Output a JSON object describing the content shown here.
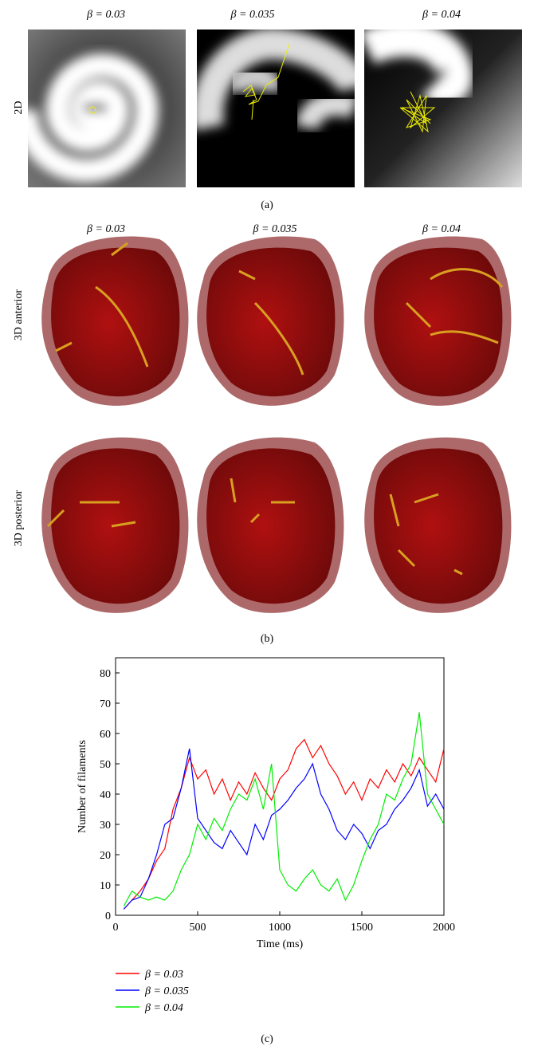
{
  "panel_a": {
    "columns": [
      "β = 0.03",
      "β = 0.035",
      "β = 0.04"
    ],
    "row_label": "2D",
    "caption": "(a)"
  },
  "panel_b": {
    "columns": [
      "β = 0.03",
      "β = 0.035",
      "β = 0.04"
    ],
    "rows": [
      "3D anterior",
      "3D posterior"
    ],
    "caption": "(b)"
  },
  "chart_data": {
    "type": "line",
    "xlabel": "Time (ms)",
    "ylabel": "Number of filaments",
    "x": [
      50,
      100,
      150,
      200,
      250,
      300,
      350,
      400,
      450,
      500,
      550,
      600,
      650,
      700,
      750,
      800,
      850,
      900,
      950,
      1000,
      1050,
      1100,
      1150,
      1200,
      1250,
      1300,
      1350,
      1400,
      1450,
      1500,
      1550,
      1600,
      1650,
      1700,
      1750,
      1800,
      1850,
      1900,
      1950,
      2000
    ],
    "series": [
      {
        "name": "β = 0.03",
        "color": "#ff0000",
        "values": [
          2,
          5,
          8,
          12,
          18,
          22,
          35,
          42,
          52,
          45,
          48,
          40,
          45,
          38,
          44,
          40,
          47,
          42,
          38,
          45,
          48,
          55,
          58,
          52,
          56,
          50,
          46,
          40,
          44,
          38,
          45,
          42,
          48,
          44,
          50,
          46,
          52,
          48,
          44,
          55
        ]
      },
      {
        "name": "β = 0.035",
        "color": "#0000ff",
        "values": [
          2,
          5,
          6,
          12,
          20,
          30,
          32,
          42,
          55,
          32,
          28,
          24,
          22,
          28,
          24,
          20,
          30,
          25,
          33,
          35,
          38,
          42,
          45,
          50,
          40,
          35,
          28,
          25,
          30,
          27,
          22,
          28,
          30,
          35,
          38,
          42,
          48,
          36,
          40,
          35
        ]
      },
      {
        "name": "β = 0.04",
        "color": "#00ee00",
        "values": [
          3,
          8,
          6,
          5,
          6,
          5,
          8,
          15,
          20,
          30,
          25,
          32,
          28,
          35,
          40,
          38,
          45,
          35,
          50,
          15,
          10,
          8,
          12,
          15,
          10,
          8,
          12,
          5,
          10,
          18,
          25,
          30,
          40,
          38,
          45,
          50,
          67,
          40,
          35,
          30
        ]
      }
    ],
    "xlim": [
      0,
      2000
    ],
    "ylim": [
      0,
      85
    ],
    "xticks": [
      0,
      500,
      1000,
      1500,
      2000
    ],
    "yticks": [
      0,
      10,
      20,
      30,
      40,
      50,
      60,
      70,
      80
    ],
    "caption": "(c)"
  }
}
